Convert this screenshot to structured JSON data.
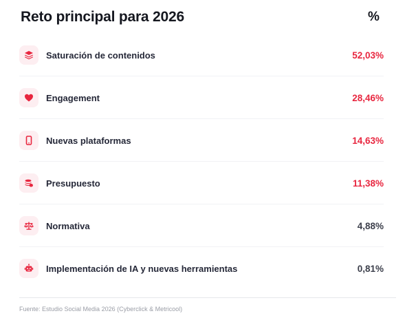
{
  "title": "Reto principal para 2026",
  "pct_header": "%",
  "accent_color": "#e8263f",
  "rows": [
    {
      "label": "Saturación de contenidos",
      "value": "52,03%",
      "icon": "layers-icon",
      "highlight": true
    },
    {
      "label": "Engagement",
      "value": "28,46%",
      "icon": "heart-icon",
      "highlight": true
    },
    {
      "label": "Nuevas plataformas",
      "value": "14,63%",
      "icon": "smartphone-icon",
      "highlight": true
    },
    {
      "label": "Presupuesto",
      "value": "11,38%",
      "icon": "coins-icon",
      "highlight": true
    },
    {
      "label": "Normativa",
      "value": "4,88%",
      "icon": "scale-icon",
      "highlight": false
    },
    {
      "label": "Implementación de IA y nuevas herramientas",
      "value": "0,81%",
      "icon": "robot-icon",
      "highlight": false
    }
  ],
  "source": "Fuente: Estudio Social Media 2026 (Cyberclick & Metricool)"
}
